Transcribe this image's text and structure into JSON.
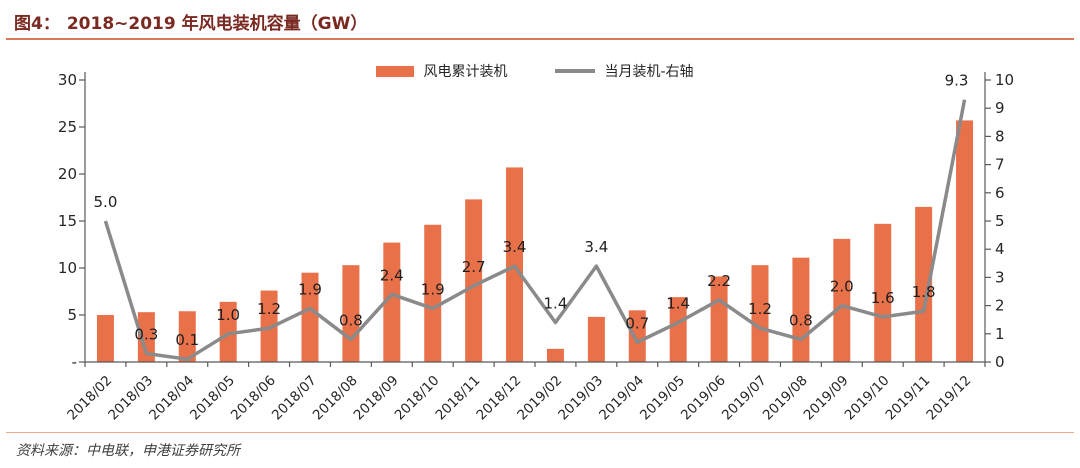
{
  "title": {
    "prefix": "图4：",
    "text": "2018~2019 年风电装机容量（GW）"
  },
  "legend": {
    "items": [
      {
        "label": "风电累计装机",
        "type": "bar",
        "color": "#E8714A"
      },
      {
        "label": "当月装机-右轴",
        "type": "line",
        "color": "#8A8A8A"
      }
    ]
  },
  "footer": {
    "source": "资料来源：中电联，申港证券研究所"
  },
  "colors": {
    "bar": "#E8714A",
    "line": "#8A8A8A",
    "axis": "#595959",
    "title": "#7B2A22",
    "title_rule": "#D97A55",
    "footer_rule": "#E7A98C"
  },
  "chart_data": {
    "type": "bar",
    "subtype": "dual-axis bar + line",
    "categories": [
      "2018/02",
      "2018/03",
      "2018/04",
      "2018/05",
      "2018/06",
      "2018/07",
      "2018/08",
      "2018/09",
      "2018/10",
      "2018/11",
      "2018/12",
      "2019/02",
      "2019/03",
      "2019/04",
      "2019/05",
      "2019/06",
      "2019/07",
      "2019/08",
      "2019/09",
      "2019/10",
      "2019/11",
      "2019/12"
    ],
    "series": [
      {
        "name": "风电累计装机",
        "type": "bar",
        "axis": "left",
        "color": "#E8714A",
        "values": [
          5.0,
          5.3,
          5.4,
          6.4,
          7.6,
          9.5,
          10.3,
          12.7,
          14.6,
          17.3,
          20.7,
          1.4,
          4.8,
          5.5,
          6.9,
          9.1,
          10.3,
          11.1,
          13.1,
          14.7,
          16.5,
          25.7
        ]
      },
      {
        "name": "当月装机-右轴",
        "type": "line",
        "axis": "right",
        "color": "#8A8A8A",
        "values": [
          5.0,
          0.3,
          0.1,
          1.0,
          1.2,
          1.9,
          0.8,
          2.4,
          1.9,
          2.7,
          3.4,
          1.4,
          3.4,
          0.7,
          1.4,
          2.2,
          1.2,
          0.8,
          2.0,
          1.6,
          1.8,
          9.3
        ],
        "point_labels": [
          "5.0",
          "0.3",
          "0.1",
          "1.0",
          "1.2",
          "1.9",
          "0.8",
          "2.4",
          "1.9",
          "2.7",
          "3.4",
          "1.4",
          "3.4",
          "0.7",
          "1.4",
          "2.2",
          "1.2",
          "0.8",
          "2.0",
          "1.6",
          "1.8",
          "9.3"
        ]
      }
    ],
    "left_axis": {
      "min": 0,
      "max": 30,
      "tick_labels": [
        "30",
        "25",
        "20",
        "15",
        "10",
        "5",
        "-"
      ],
      "tick_values": [
        30,
        25,
        20,
        15,
        10,
        5,
        0
      ]
    },
    "right_axis": {
      "min": 0,
      "max": 10,
      "tick_labels": [
        "10",
        "9",
        "8",
        "7",
        "6",
        "5",
        "4",
        "3",
        "2",
        "1",
        "0"
      ],
      "tick_values": [
        10,
        9,
        8,
        7,
        6,
        5,
        4,
        3,
        2,
        1,
        0
      ]
    },
    "grid": false,
    "legend_position": "top-center"
  }
}
